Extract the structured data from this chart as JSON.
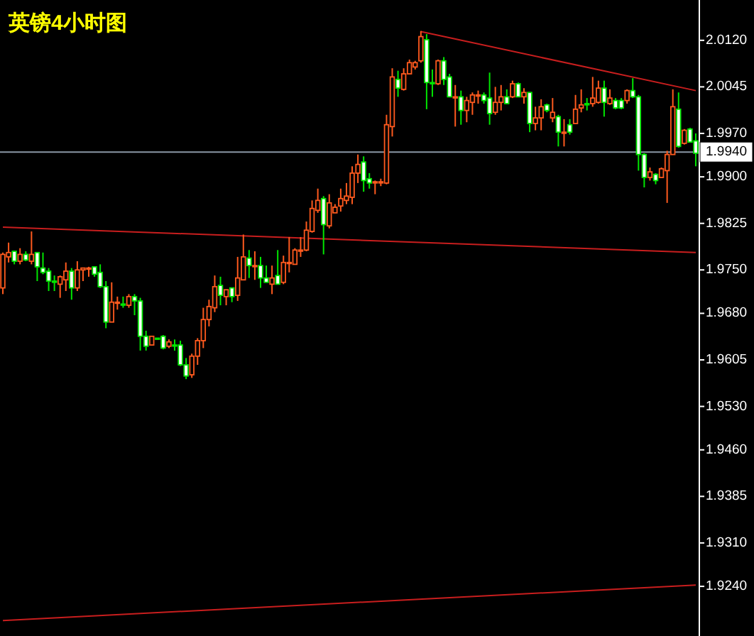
{
  "chart_data": {
    "type": "candlestick",
    "title": "英镑4小时图",
    "categories": [
      null,
      null,
      null,
      null,
      null,
      null,
      null,
      null,
      null,
      null,
      null,
      null,
      null,
      null,
      null,
      null,
      null,
      null,
      null,
      null,
      null,
      null,
      null,
      null,
      null,
      null,
      null,
      null,
      null,
      null,
      null,
      null,
      null,
      null,
      null,
      null,
      null,
      null,
      null,
      null,
      null,
      null,
      null,
      null,
      null,
      null,
      null,
      null,
      null,
      null,
      null,
      null,
      null,
      null,
      null,
      null,
      null,
      null,
      null,
      null,
      null,
      null,
      null,
      null,
      null,
      null,
      null,
      null,
      null,
      null,
      null,
      null,
      null,
      null,
      null,
      null,
      null,
      null,
      null,
      null,
      null,
      null,
      null,
      null,
      null,
      null,
      null,
      null,
      null,
      null,
      null,
      null,
      null,
      null,
      null,
      null,
      null,
      null,
      null,
      null,
      null,
      null,
      null,
      null,
      null,
      null,
      null,
      null,
      null,
      null,
      null,
      null,
      null,
      null,
      null,
      null,
      null,
      null,
      null,
      null,
      null,
      null
    ],
    "ohlc": [
      [
        1.9721,
        1.9778,
        1.9711,
        1.9775
      ],
      [
        1.9771,
        1.9794,
        1.9762,
        1.9778
      ],
      [
        1.978,
        1.978,
        1.9759,
        1.9764
      ],
      [
        1.9764,
        1.9785,
        1.9759,
        1.9775
      ],
      [
        1.9775,
        1.978,
        1.9764,
        1.9766
      ],
      [
        1.9764,
        1.9812,
        1.9759,
        1.9775
      ],
      [
        1.9778,
        1.9778,
        1.9732,
        1.9755
      ],
      [
        1.9753,
        1.9778,
        1.9743,
        1.9746
      ],
      [
        1.9748,
        1.9753,
        1.9716,
        1.9732
      ],
      [
        1.9732,
        1.9741,
        1.9716,
        1.973
      ],
      [
        1.9727,
        1.9741,
        1.9705,
        1.9739
      ],
      [
        1.9734,
        1.9762,
        1.9716,
        1.9748
      ],
      [
        1.9748,
        1.9753,
        1.9702,
        1.9721
      ],
      [
        1.9721,
        1.9764,
        1.9716,
        1.975
      ],
      [
        1.975,
        1.9753,
        1.9732,
        1.9753
      ],
      [
        1.9753,
        1.9755,
        1.9739,
        1.9753
      ],
      [
        1.9755,
        1.9755,
        1.9739,
        1.9743
      ],
      [
        1.9746,
        1.9759,
        1.9721,
        1.9723
      ],
      [
        1.9723,
        1.9732,
        1.9656,
        1.9666
      ],
      [
        1.9666,
        1.973,
        1.9666,
        1.9698
      ],
      [
        1.9698,
        1.9707,
        1.9686,
        1.9698
      ],
      [
        1.9695,
        1.9707,
        1.9689,
        1.9695
      ],
      [
        1.9693,
        1.9711,
        1.9689,
        1.9707
      ],
      [
        1.9707,
        1.9711,
        1.9677,
        1.97
      ],
      [
        1.97,
        1.9705,
        1.962,
        1.9643
      ],
      [
        1.9643,
        1.9652,
        1.962,
        1.9627
      ],
      [
        1.9629,
        1.9643,
        1.9629,
        1.9643
      ],
      [
        1.964,
        1.964,
        1.964,
        1.964
      ],
      [
        1.9643,
        1.9645,
        1.9622,
        1.9624
      ],
      [
        1.9627,
        1.9638,
        1.9624,
        1.9634
      ],
      [
        1.9629,
        1.9638,
        1.962,
        1.9629
      ],
      [
        1.9629,
        1.9636,
        1.9595,
        1.9597
      ],
      [
        1.9597,
        1.9608,
        1.9574,
        1.9579
      ],
      [
        1.9581,
        1.9615,
        1.9576,
        1.9611
      ],
      [
        1.9611,
        1.964,
        1.9597,
        1.9636
      ],
      [
        1.9636,
        1.9689,
        1.9624,
        1.967
      ],
      [
        1.967,
        1.9702,
        1.9659,
        1.9691
      ],
      [
        1.9689,
        1.9741,
        1.9682,
        1.9723
      ],
      [
        1.9725,
        1.9739,
        1.9693,
        1.9709
      ],
      [
        1.9707,
        1.9718,
        1.9693,
        1.9718
      ],
      [
        1.9721,
        1.9721,
        1.9698,
        1.9707
      ],
      [
        1.9709,
        1.9771,
        1.97,
        1.9737
      ],
      [
        1.9734,
        1.9807,
        1.9734,
        1.9771
      ],
      [
        1.9769,
        1.9782,
        1.9737,
        1.9757
      ],
      [
        1.9757,
        1.978,
        1.9734,
        1.9757
      ],
      [
        1.9757,
        1.9771,
        1.9721,
        1.9737
      ],
      [
        1.9737,
        1.9757,
        1.973,
        1.973
      ],
      [
        1.9727,
        1.9757,
        1.9711,
        1.9737
      ],
      [
        1.9741,
        1.9782,
        1.9727,
        1.9727
      ],
      [
        1.973,
        1.9773,
        1.9727,
        1.9762
      ],
      [
        1.9762,
        1.9803,
        1.9746,
        1.9762
      ],
      [
        1.9759,
        1.9785,
        1.9759,
        1.9782
      ],
      [
        1.9782,
        1.9803,
        1.9771,
        1.9782
      ],
      [
        1.9782,
        1.9828,
        1.978,
        1.9814
      ],
      [
        1.9812,
        1.9862,
        1.981,
        1.9849
      ],
      [
        1.9846,
        1.9881,
        1.9842,
        1.9862
      ],
      [
        1.9865,
        1.9869,
        1.9775,
        1.9823
      ],
      [
        1.9821,
        1.9872,
        1.9817,
        1.9858
      ],
      [
        1.9842,
        1.9856,
        1.9842,
        1.9851
      ],
      [
        1.9853,
        1.9881,
        1.9844,
        1.9865
      ],
      [
        1.9862,
        1.989,
        1.9856,
        1.9869
      ],
      [
        1.9867,
        1.9917,
        1.9856,
        1.9906
      ],
      [
        1.9906,
        1.9936,
        1.989,
        1.992
      ],
      [
        1.9924,
        1.9933,
        1.9876,
        1.9894
      ],
      [
        1.9897,
        1.9906,
        1.9881,
        1.989
      ],
      [
        1.9892,
        1.9894,
        1.9872,
        1.9892
      ],
      [
        1.9892,
        1.9897,
        1.9885,
        1.9892
      ],
      [
        1.989,
        2.0,
        1.9888,
        1.9984
      ],
      [
        1.9981,
        2.0075,
        1.9965,
        2.0061
      ],
      [
        2.0057,
        2.0071,
        2.0029,
        2.0043
      ],
      [
        2.0041,
        2.0075,
        2.0039,
        2.0066
      ],
      [
        2.0066,
        2.0089,
        2.0066,
        2.0084
      ],
      [
        2.0077,
        2.0087,
        2.0073,
        2.0084
      ],
      [
        2.0087,
        2.0135,
        2.0084,
        2.0126
      ],
      [
        2.0121,
        2.013,
        2.0009,
        2.0052
      ],
      [
        2.0052,
        2.0073,
        2.0029,
        2.005
      ],
      [
        2.005,
        2.0089,
        2.0048,
        2.0087
      ],
      [
        2.0087,
        2.0093,
        2.0048,
        2.0057
      ],
      [
        2.0061,
        2.0066,
        2.0029,
        2.0029
      ],
      [
        2.0029,
        2.0048,
        1.9981,
        2.0029
      ],
      [
        2.0029,
        2.0039,
        1.9984,
        2.0007
      ],
      [
        2.0007,
        2.0029,
        1.9988,
        2.0023
      ],
      [
        2.002,
        2.0036,
        2.0,
        2.0032
      ],
      [
        2.0032,
        2.0039,
        2.0018,
        2.0032
      ],
      [
        2.0032,
        2.0036,
        2.0018,
        2.0023
      ],
      [
        2.0027,
        2.0068,
        1.9984,
        2.0002
      ],
      [
        2.0004,
        2.0045,
        2.0,
        2.002
      ],
      [
        2.002,
        2.0048,
        2.0007,
        2.0029
      ],
      [
        2.0029,
        2.0041,
        2.0018,
        2.0018
      ],
      [
        2.0029,
        2.0055,
        2.0027,
        2.005
      ],
      [
        2.005,
        2.0052,
        2.0029,
        2.0029
      ],
      [
        2.0029,
        2.0043,
        2.0018,
        2.0036
      ],
      [
        2.0036,
        2.0036,
        1.9972,
        1.9986
      ],
      [
        1.9986,
        2.0013,
        1.9975,
        1.9995
      ],
      [
        1.9995,
        2.0025,
        1.9975,
        2.0013
      ],
      [
        2.0016,
        2.0018,
        2.0004,
        2.0007
      ],
      [
        1.9995,
        2.0027,
        1.9988,
        2.0004
      ],
      [
        1.9997,
        2.0,
        1.9949,
        1.9972
      ],
      [
        1.9972,
        1.9993,
        1.9949,
        1.9972
      ],
      [
        1.9984,
        1.9993,
        1.9968,
        1.9972
      ],
      [
        1.9986,
        2.0032,
        1.9986,
        2.0009
      ],
      [
        2.0011,
        2.0041,
        2.0004,
        2.0016
      ],
      [
        2.0018,
        2.0027,
        2.0007,
        2.0016
      ],
      [
        2.0018,
        2.0061,
        2.0013,
        2.0027
      ],
      [
        2.002,
        2.0055,
        2.0018,
        2.0043
      ],
      [
        2.0043,
        2.0055,
        1.9997,
        2.002
      ],
      [
        2.0018,
        2.0041,
        2.0016,
        2.0027
      ],
      [
        2.0023,
        2.0027,
        2.0009,
        2.0011
      ],
      [
        2.0023,
        2.0027,
        2.0009,
        2.0011
      ],
      [
        2.0023,
        2.0041,
        2.0018,
        2.0039
      ],
      [
        2.0039,
        2.0059,
        2.0027,
        2.0029
      ],
      [
        2.0029,
        2.0032,
        1.991,
        1.9936
      ],
      [
        1.9936,
        1.9938,
        1.9883,
        1.9899
      ],
      [
        1.9899,
        1.9915,
        1.9894,
        1.9908
      ],
      [
        1.9904,
        1.9906,
        1.9888,
        1.9894
      ],
      [
        1.9899,
        1.9915,
        1.9899,
        1.9913
      ],
      [
        1.991,
        1.9942,
        1.9858,
        1.9936
      ],
      [
        1.9936,
        2.0041,
        1.9936,
        2.0013
      ],
      [
        2.0009,
        2.0036,
        1.9947,
        1.9949
      ],
      [
        1.9954,
        1.9977,
        1.9952,
        1.9975
      ],
      [
        1.9977,
        1.9979,
        1.9956,
        1.9956
      ],
      [
        1.9958,
        1.997,
        1.9917,
        1.9938
      ]
    ],
    "series": [
      {
        "type": "line",
        "color": "#c81e1e",
        "values": [
          1.9819,
          null,
          null,
          null,
          null,
          null,
          null,
          null,
          null,
          null,
          null,
          null,
          null,
          null,
          null,
          null,
          null,
          null,
          null,
          null,
          null,
          null,
          null,
          null,
          null,
          null,
          null,
          null,
          null,
          null,
          null,
          null,
          null,
          null,
          null,
          null,
          null,
          null,
          null,
          null,
          null,
          null,
          null,
          null,
          null,
          null,
          null,
          null,
          null,
          null,
          null,
          null,
          null,
          null,
          null,
          null,
          null,
          null,
          null,
          null,
          null,
          null,
          null,
          null,
          null,
          null,
          null,
          null,
          null,
          null,
          null,
          null,
          null,
          null,
          null,
          null,
          null,
          null,
          null,
          null,
          null,
          null,
          null,
          null,
          null,
          null,
          null,
          null,
          null,
          null,
          null,
          null,
          null,
          null,
          null,
          null,
          null,
          null,
          null,
          null,
          null,
          null,
          null,
          null,
          null,
          null,
          null,
          null,
          null,
          null,
          null,
          null,
          null,
          null,
          null,
          null,
          null,
          null,
          null,
          null,
          null,
          1.9778
        ]
      },
      {
        "type": "line",
        "color": "#c81e1e",
        "values": [
          1.9185,
          null,
          null,
          null,
          null,
          null,
          null,
          null,
          null,
          null,
          null,
          null,
          null,
          null,
          null,
          null,
          null,
          null,
          null,
          null,
          null,
          null,
          null,
          null,
          null,
          null,
          null,
          null,
          null,
          null,
          null,
          null,
          null,
          null,
          null,
          null,
          null,
          null,
          null,
          null,
          null,
          null,
          null,
          null,
          null,
          null,
          null,
          null,
          null,
          null,
          null,
          null,
          null,
          null,
          null,
          null,
          null,
          null,
          null,
          null,
          null,
          null,
          null,
          null,
          null,
          null,
          null,
          null,
          null,
          null,
          null,
          null,
          null,
          null,
          null,
          null,
          null,
          null,
          null,
          null,
          null,
          null,
          null,
          null,
          null,
          null,
          null,
          null,
          null,
          null,
          null,
          null,
          null,
          null,
          null,
          null,
          null,
          null,
          null,
          null,
          null,
          null,
          null,
          null,
          null,
          null,
          null,
          null,
          null,
          null,
          null,
          null,
          null,
          null,
          null,
          null,
          null,
          null,
          null,
          null,
          null,
          1.9242
        ]
      },
      {
        "type": "line",
        "color": "#c81e1e",
        "values": [
          null,
          null,
          null,
          null,
          null,
          null,
          null,
          null,
          null,
          null,
          null,
          null,
          null,
          null,
          null,
          null,
          null,
          null,
          null,
          null,
          null,
          null,
          null,
          null,
          null,
          null,
          null,
          null,
          null,
          null,
          null,
          null,
          null,
          null,
          null,
          null,
          null,
          null,
          null,
          null,
          null,
          null,
          null,
          null,
          null,
          null,
          null,
          null,
          null,
          null,
          null,
          null,
          null,
          null,
          null,
          null,
          null,
          null,
          null,
          null,
          null,
          null,
          null,
          null,
          null,
          null,
          null,
          null,
          null,
          null,
          null,
          null,
          null,
          2.0134,
          null,
          null,
          null,
          null,
          null,
          null,
          null,
          null,
          null,
          null,
          null,
          null,
          null,
          null,
          null,
          null,
          null,
          null,
          null,
          null,
          null,
          null,
          null,
          null,
          null,
          null,
          null,
          null,
          null,
          null,
          null,
          null,
          null,
          null,
          null,
          null,
          null,
          null,
          null,
          null,
          null,
          null,
          null,
          null,
          null,
          null,
          null,
          2.0039
        ]
      }
    ],
    "ylim": [
      1.916,
      2.0185
    ],
    "yticks": [
      {
        "value": 2.012,
        "label": "2.0120"
      },
      {
        "value": 2.0045,
        "label": "2.0045"
      },
      {
        "value": 1.997,
        "label": "1.9970"
      },
      {
        "value": 1.99,
        "label": "1.9900"
      },
      {
        "value": 1.9825,
        "label": "1.9825"
      },
      {
        "value": 1.975,
        "label": "1.9750"
      },
      {
        "value": 1.968,
        "label": "1.9680"
      },
      {
        "value": 1.9605,
        "label": "1.9605"
      },
      {
        "value": 1.953,
        "label": "1.9530"
      },
      {
        "value": 1.946,
        "label": "1.9460"
      },
      {
        "value": 1.9385,
        "label": "1.9385"
      },
      {
        "value": 1.931,
        "label": "1.9310"
      },
      {
        "value": 1.924,
        "label": "1.9240"
      }
    ],
    "ref_lines": [
      {
        "axis": "y",
        "value": 1.994,
        "label": "1.9940",
        "color": "#8a97a5"
      }
    ],
    "tick_labels": "y"
  }
}
